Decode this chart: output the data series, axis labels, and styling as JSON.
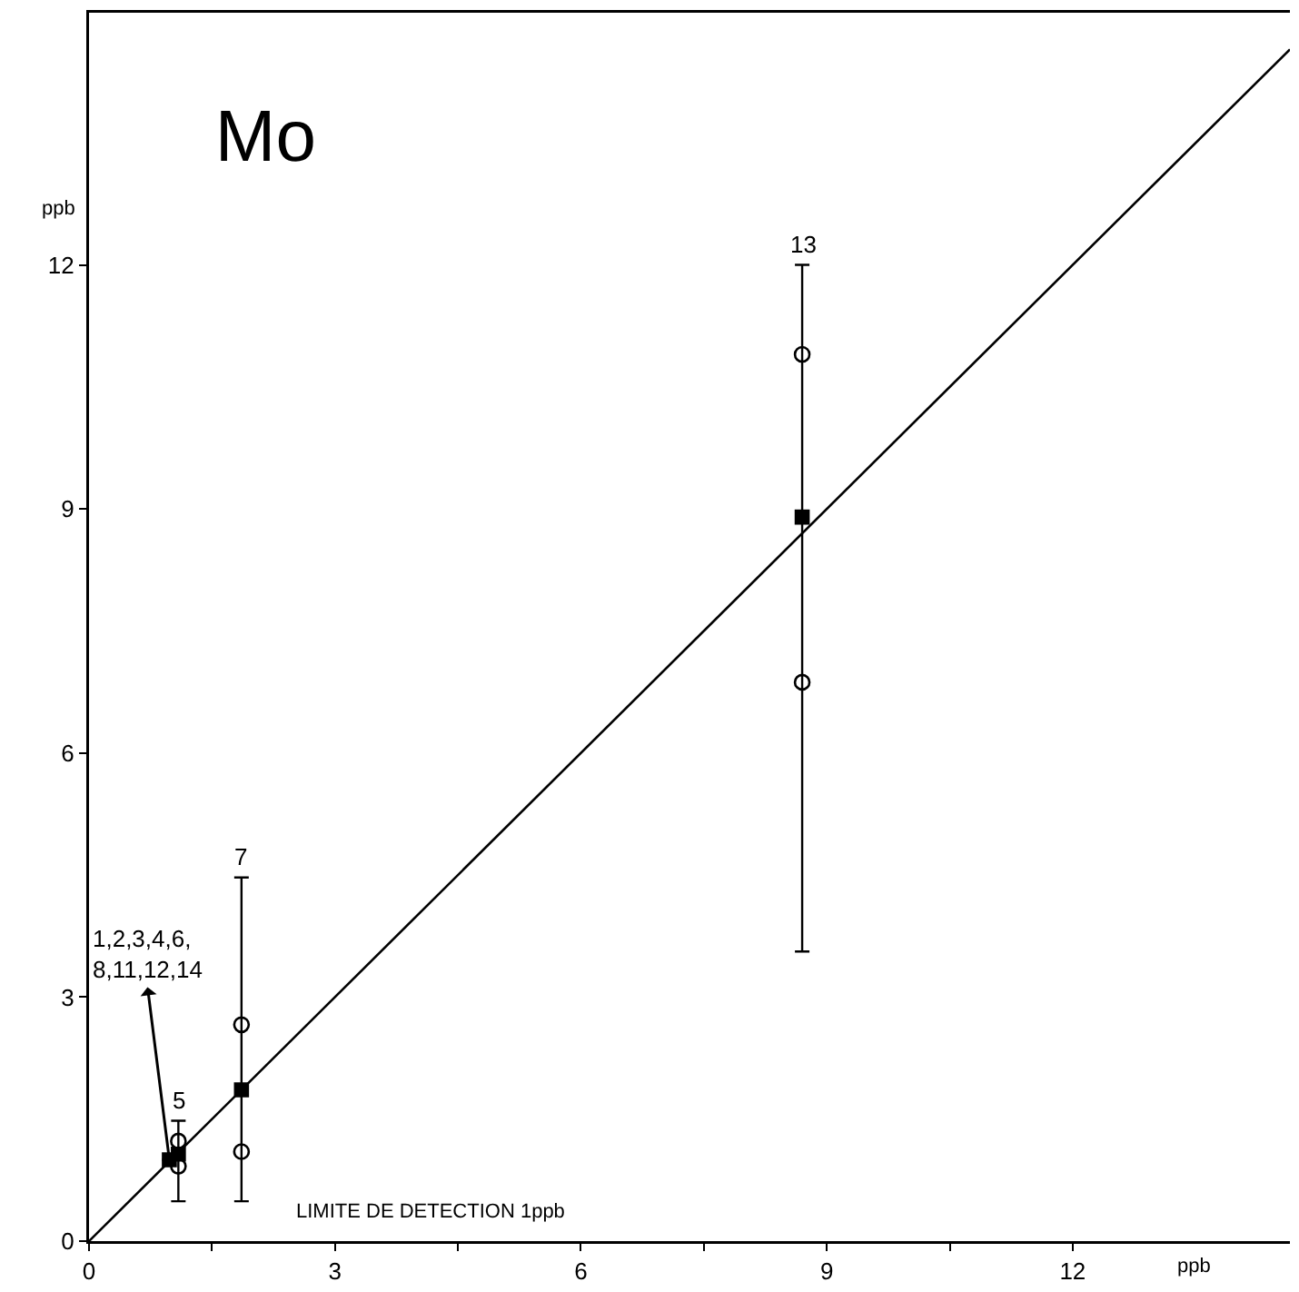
{
  "chart_data": {
    "type": "scatter",
    "title": "Mo",
    "xlabel": "ppb",
    "ylabel": "ppb",
    "xlim": [
      0,
      14.65
    ],
    "ylim": [
      0,
      15.1
    ],
    "xticks": [
      0,
      {
        "value": 1.5,
        "label": null
      },
      3,
      {
        "value": 4.5,
        "label": null
      },
      6,
      {
        "value": 7.5,
        "label": null
      },
      9,
      {
        "value": 10.5,
        "label": null
      },
      12
    ],
    "yticks": [
      0,
      3,
      6,
      9,
      12
    ],
    "grid": false,
    "series": [
      {
        "type": "line",
        "color": "#000000",
        "x": [
          0,
          14.65
        ],
        "values": [
          0,
          14.65
        ],
        "marker": "none",
        "line_style": "solid"
      },
      {
        "color": "#000000",
        "x": [
          0.98,
          1.09,
          1.86,
          8.7
        ],
        "values": [
          1.0,
          1.07,
          1.86,
          8.9
        ],
        "errors": [
          null,
          [
            0.49,
            1.48
          ],
          [
            0.49,
            4.47
          ],
          [
            3.56,
            12.0
          ]
        ],
        "marker": "square"
      },
      {
        "color": "#000000",
        "x": [
          1.09,
          1.09,
          1.86,
          1.86,
          8.7,
          8.7
        ],
        "values": [
          1.23,
          0.92,
          2.66,
          1.1,
          10.9,
          6.87
        ],
        "marker": "circle"
      }
    ],
    "annotations": [
      {
        "text": "13",
        "x": 8.7,
        "y": 12.0
      },
      {
        "text": "7",
        "x": 1.86,
        "y": 4.47
      },
      {
        "text": "5",
        "x": 1.09,
        "y": 1.48
      },
      {
        "text": "1,2,3,4,6,\n8,11,12,14",
        "x": 0.98,
        "y": 1.0
      },
      "LIMITE DE DETECTION 1ppb"
    ]
  }
}
